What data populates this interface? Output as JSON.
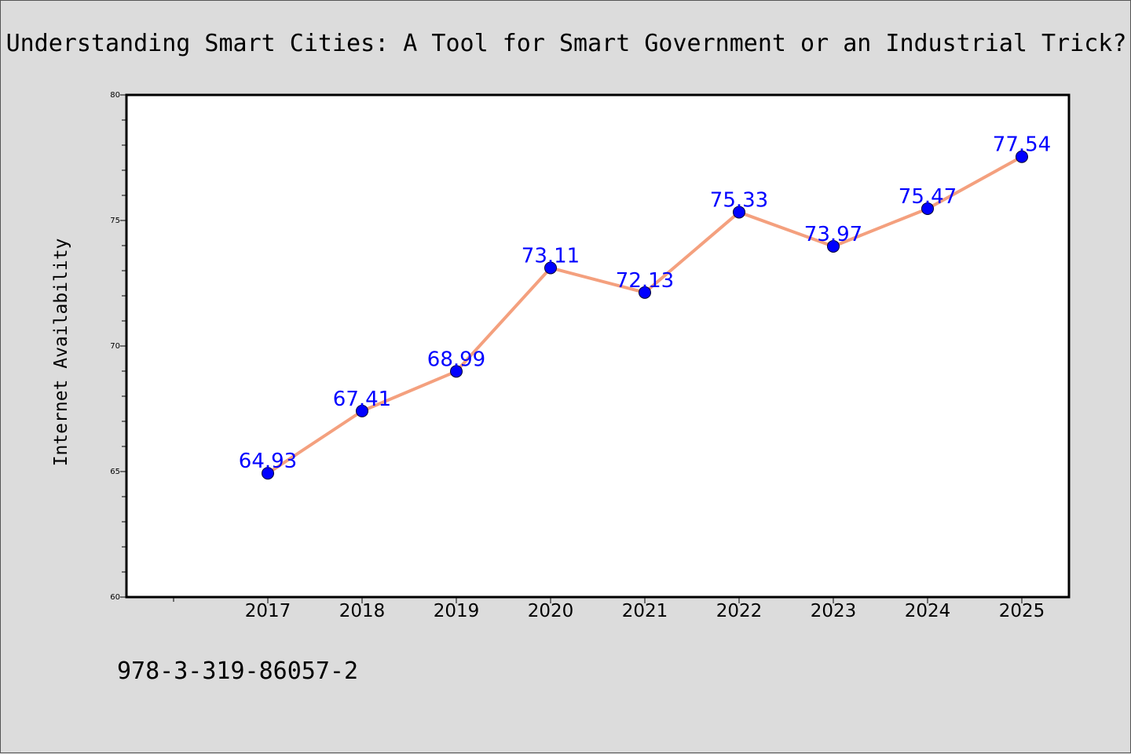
{
  "chart_data": {
    "type": "line",
    "title": "Understanding Smart Cities: A Tool for Smart Government or an Industrial Trick?",
    "xlabel": "",
    "ylabel": "Internet Availability",
    "x": [
      "2017",
      "2018",
      "2019",
      "2020",
      "2021",
      "2022",
      "2023",
      "2024",
      "2025"
    ],
    "series": [
      {
        "values": [
          64.93,
          67.41,
          68.99,
          73.11,
          72.13,
          75.33,
          73.97,
          75.47,
          77.54
        ],
        "labels": [
          "64.93",
          "67.41",
          "68.99",
          "73.11",
          "72.13",
          "75.33",
          "73.97",
          "75.47",
          "77.54"
        ]
      }
    ],
    "ylim": [
      60,
      80
    ],
    "yticks": [
      "60",
      "65",
      "70",
      "75",
      "80"
    ],
    "grid": false,
    "line_color": "#f4a07e",
    "marker_color": "#0000ff",
    "label_color": "#0000ff"
  },
  "footnote": "978-3-319-86057-2"
}
